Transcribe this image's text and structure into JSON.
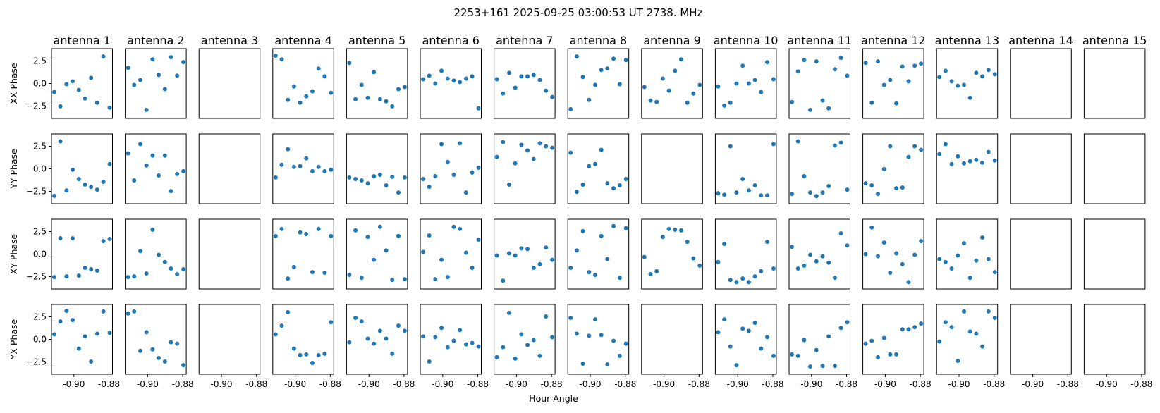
{
  "chart_data": {
    "type": "scatter",
    "title": "2253+161  2025-09-25 03:00:53 UT  2738. MHz",
    "xlabel": "Hour Angle",
    "row_labels": [
      "XX Phase",
      "YY Phase",
      "XY Phase",
      "YX Phase"
    ],
    "antennas": [
      "antenna 1",
      "antenna 2",
      "antenna 3",
      "antenna 4",
      "antenna 5",
      "antenna 6",
      "antenna 7",
      "antenna 8",
      "antenna 9",
      "antenna 10",
      "antenna 11",
      "antenna 12",
      "antenna 13",
      "antenna 14",
      "antenna 15"
    ],
    "xlim": [
      -0.9128,
      -0.878
    ],
    "ylim": [
      -3.87,
      3.87
    ],
    "xticks": [
      {
        "value": -0.9,
        "label": "-0.90"
      },
      {
        "value": -0.88,
        "label": "-0.88"
      }
    ],
    "yticks": [
      {
        "value": 2.5,
        "label": "2.5"
      },
      {
        "value": 0.0,
        "label": "0.0"
      },
      {
        "value": -2.5,
        "label": "−2.5"
      }
    ],
    "x": [
      -0.9112,
      -0.9077,
      -0.9042,
      -0.9007,
      -0.8972,
      -0.8937,
      -0.8902,
      -0.8867,
      -0.8832,
      -0.8796
    ],
    "marker_color": "#1f77b4",
    "series": [
      [
        [
          -0.95,
          -2.53,
          -0.08,
          0.24,
          -0.71,
          -1.66,
          0.63,
          -2.13,
          3.0,
          -2.68
        ],
        [
          1.74,
          -0.16,
          0.39,
          -2.92,
          2.68,
          0.95,
          -0.63,
          2.92,
          0.87,
          2.37
        ],
        null,
        [
          3.08,
          2.68,
          -1.82,
          -0.32,
          -2.13,
          -1.42,
          -0.87,
          1.66,
          0.79,
          -1.03
        ],
        [
          2.29,
          -1.74,
          -0.16,
          -1.58,
          1.26,
          -1.74,
          -1.97,
          -2.53,
          -0.63,
          -0.39
        ],
        [
          0.47,
          0.87,
          0.0,
          1.42,
          0.55,
          0.32,
          0.16,
          0.55,
          0.79,
          -2.76
        ],
        [
          0.47,
          -1.11,
          1.18,
          -0.47,
          0.79,
          0.79,
          0.95,
          0.39,
          -0.79,
          -1.5
        ],
        [
          -2.84,
          3.0,
          0.71,
          -1.82,
          -0.16,
          1.5,
          1.66,
          2.76,
          -0.08,
          2.6
        ],
        [
          -0.39,
          -1.89,
          -2.05,
          0.55,
          -0.79,
          1.42,
          2.68,
          -2.13,
          -1.11,
          -0.16
        ],
        [
          -0.32,
          -2.45,
          -2.13,
          0.0,
          1.97,
          0.0,
          0.39,
          -0.95,
          2.37,
          0.47
        ],
        [
          -2.05,
          1.34,
          2.6,
          -2.92,
          2.45,
          -1.89,
          -2.76,
          1.58,
          2.84,
          0.87
        ],
        [
          2.29,
          -2.13,
          2.45,
          -0.16,
          0.39,
          -2.21,
          1.89,
          0.24,
          1.97,
          2.21
        ],
        [
          0.71,
          1.42,
          0.24,
          -0.24,
          -0.16,
          -1.58,
          1.18,
          0.79,
          1.5,
          1.03
        ],
        null,
        null
      ],
      [
        [
          -3.0,
          3.05,
          -2.4,
          -0.1,
          -1.13,
          -1.76,
          -2.0,
          -2.32,
          -1.45,
          0.53
        ],
        [
          1.71,
          -1.29,
          2.74,
          0.37,
          1.47,
          -0.74,
          1.47,
          -2.47,
          -0.58,
          -0.26
        ],
        null,
        [
          -0.97,
          0.45,
          2.18,
          0.21,
          0.29,
          1.16,
          -0.26,
          0.21,
          -0.26,
          -0.1
        ],
        [
          -0.97,
          -1.13,
          -1.29,
          -1.61,
          -0.82,
          -0.66,
          -1.84,
          -0.89,
          -2.63,
          -0.97
        ],
        [
          -1.13,
          -2.0,
          -0.82,
          2.74,
          0.76,
          -0.66,
          2.82,
          -2.63,
          -0.42,
          0.13
        ],
        [
          1.32,
          2.97,
          -1.76,
          0.61,
          2.66,
          2.03,
          1.08,
          2.82,
          2.5,
          2.34
        ],
        [
          1.79,
          -2.55,
          -1.76,
          0.29,
          0.53,
          2.11,
          -1.61,
          -2.16,
          -1.84,
          -1.13
        ],
        null,
        [
          -2.71,
          -2.87,
          2.5,
          -2.63,
          -1.13,
          -2.4,
          -1.84,
          -2.95,
          -2.95,
          2.74
        ],
        [
          -2.79,
          3.05,
          -0.82,
          -2.63,
          -3.03,
          -2.63,
          -1.92,
          2.58,
          2.9,
          -2.32
        ],
        [
          -1.61,
          -1.84,
          -2.79,
          -0.03,
          2.5,
          -2.16,
          -2.08,
          1.32,
          2.5,
          2.11
        ],
        [
          1.63,
          2.74,
          0.53,
          1.39,
          0.61,
          0.84,
          1.0,
          0.68,
          1.87,
          0.92
        ],
        null,
        null
      ],
      [
        [
          -2.55,
          1.76,
          -2.47,
          1.76,
          -2.39,
          -1.52,
          -1.68,
          -1.84,
          1.44,
          1.68
        ],
        [
          -2.55,
          -2.47,
          0.32,
          -2.15,
          2.71,
          -0.08,
          -0.88,
          -1.6,
          -2.23,
          -1.68
        ],
        null,
        [
          2.0,
          2.79,
          -2.71,
          -1.44,
          2.39,
          2.23,
          -2.0,
          2.79,
          -2.07,
          2.0
        ],
        [
          -2.31,
          2.63,
          -2.63,
          1.91,
          -0.64,
          3.03,
          0.4,
          -2.87,
          2.0,
          -2.79
        ],
        [
          0.24,
          2.07,
          -2.79,
          -0.64,
          -2.55,
          3.03,
          2.79,
          0.16,
          -1.52,
          1.6
        ],
        [
          -0.16,
          -2.95,
          0.08,
          -0.16,
          0.64,
          0.56,
          -1.52,
          -1.12,
          0.72,
          -0.64
        ],
        [
          -1.52,
          0.4,
          2.55,
          -2.0,
          -2.31,
          2.0,
          -0.56,
          3.11,
          -2.63,
          2.87
        ],
        [
          -0.32,
          -2.23,
          -1.91,
          1.91,
          2.79,
          2.71,
          2.63,
          1.36,
          -0.48,
          -1.28
        ],
        [
          -0.88,
          1.12,
          -2.87,
          -3.11,
          -2.71,
          -3.11,
          -2.47,
          -1.91,
          1.36,
          -1.6
        ],
        [
          0.8,
          -1.6,
          -1.28,
          -0.08,
          -0.8,
          -0.24,
          -0.96,
          -2.63,
          2.31,
          0.96
        ],
        [
          0.0,
          2.95,
          -0.24,
          1.28,
          -2.07,
          0.08,
          -1.12,
          -3.11,
          -0.08,
          1.44
        ],
        [
          -0.56,
          -0.88,
          -1.6,
          -0.16,
          1.2,
          -2.63,
          -0.72,
          1.84,
          -0.56,
          -2.0
        ],
        null,
        null
      ],
      [
        [
          0.56,
          1.98,
          3.17,
          2.14,
          -1.03,
          0.32,
          -2.46,
          0.63,
          3.1,
          0.71
        ],
        [
          2.86,
          3.1,
          -1.27,
          0.79,
          -1.11,
          -2.06,
          -2.46,
          -0.32,
          -0.48,
          -2.86
        ],
        null,
        [
          0.56,
          1.51,
          3.02,
          -1.03,
          -1.75,
          -1.67,
          -2.62,
          -1.75,
          -1.59,
          1.9
        ],
        [
          -0.32,
          2.38,
          1.98,
          0.08,
          -0.48,
          0.95,
          0.08,
          -1.59,
          1.51,
          0.95
        ],
        [
          0.32,
          -2.46,
          0.24,
          1.27,
          -0.87,
          -0.16,
          1.03,
          -0.56,
          -0.4,
          -0.79
        ],
        [
          -1.98,
          -0.87,
          2.94,
          -2.14,
          0.56,
          -0.63,
          -0.08,
          -1.83,
          2.54,
          0.24
        ],
        [
          2.38,
          0.63,
          -2.7,
          0.4,
          2.22,
          0.48,
          -2.78,
          -0.16,
          -1.83,
          -0.48
        ],
        null,
        [
          0.79,
          2.22,
          -0.79,
          -2.86,
          1.19,
          0.95,
          1.83,
          -1.03,
          0.24,
          -1.83
        ],
        [
          -1.67,
          -1.83,
          -0.08,
          -3.02,
          -1.19,
          -2.94,
          0.32,
          -2.94,
          1.27,
          1.9
        ],
        [
          -0.48,
          -0.16,
          -1.98,
          0.16,
          -1.67,
          -1.67,
          1.11,
          1.11,
          1.35,
          1.75
        ],
        [
          -0.24,
          1.9,
          1.35,
          -2.38,
          3.1,
          0.87,
          0.63,
          -0.79,
          3.1,
          2.38
        ],
        null,
        null
      ]
    ]
  }
}
